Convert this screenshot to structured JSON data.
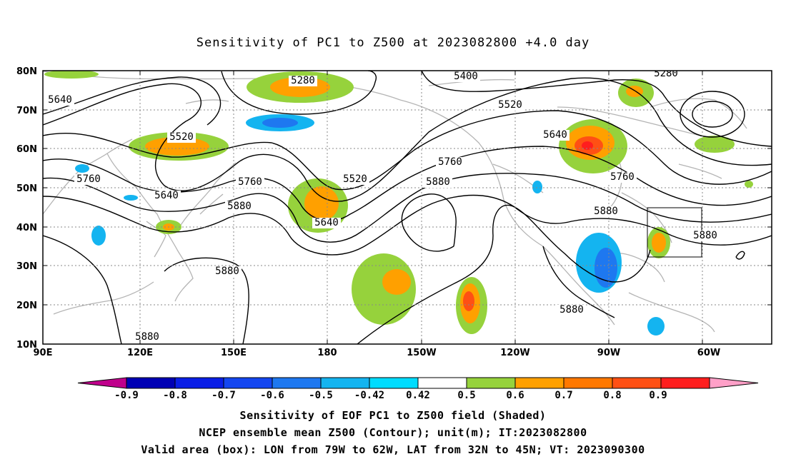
{
  "title": "Sensitivity of PC1 to Z500 at 2023082800 +4.0 day",
  "axes": {
    "lat_labels": [
      "80N",
      "70N",
      "60N",
      "50N",
      "40N",
      "30N",
      "20N",
      "10N"
    ],
    "lon_labels": [
      "90E",
      "120E",
      "150E",
      "180",
      "150W",
      "120W",
      "90W",
      "60W"
    ]
  },
  "contour_labels": [
    "5280",
    "5280",
    "5400",
    "5520",
    "5520",
    "5520",
    "5640",
    "5640",
    "5640",
    "5640",
    "5760",
    "5760",
    "5760",
    "5760",
    "5880",
    "5880",
    "5880",
    "5880",
    "5880",
    "5880",
    "5880"
  ],
  "colorbar": {
    "tick_labels": [
      "-0.9",
      "-0.8",
      "-0.7",
      "-0.6",
      "-0.5",
      "-0.42",
      "0.42",
      "0.5",
      "0.6",
      "0.7",
      "0.8",
      "0.9"
    ],
    "colors": [
      "#c0008c",
      "#0000b4",
      "#0a1ee6",
      "#1446f0",
      "#1e78f0",
      "#14b4f0",
      "#00dcff",
      "#ffffff",
      "#96d23c",
      "#ffa000",
      "#ff7800",
      "#ff5014",
      "#ff1e1e",
      "#ffa0c8"
    ]
  },
  "captions": [
    "Sensitivity of EOF PC1 to Z500 field (Shaded)",
    "NCEP ensemble mean Z500 (Contour); unit(m); IT:2023082800",
    "Valid area (box): LON from 79W to 62W, LAT from 32N to 45N; VT: 2023090300"
  ]
}
